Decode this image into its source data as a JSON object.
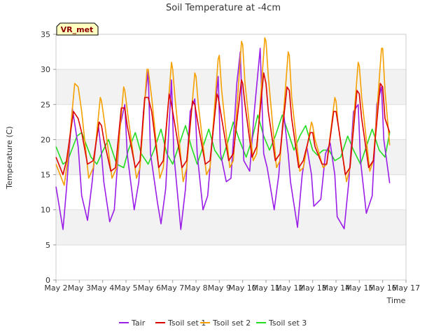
{
  "chart_data": {
    "type": "line",
    "title": "Soil Temperature at -4cm",
    "xlabel": "Time",
    "ylabel": "Temperature (C)",
    "ylim": [
      0,
      35
    ],
    "xlim": [
      2,
      17
    ],
    "yticks": [
      0,
      5,
      10,
      15,
      20,
      25,
      30,
      35
    ],
    "xticks": [
      {
        "v": 2,
        "label": "May 2"
      },
      {
        "v": 3,
        "label": "May 3"
      },
      {
        "v": 4,
        "label": "May 4"
      },
      {
        "v": 5,
        "label": "May 5"
      },
      {
        "v": 6,
        "label": "May 6"
      },
      {
        "v": 7,
        "label": "May 7"
      },
      {
        "v": 8,
        "label": "May 8"
      },
      {
        "v": 9,
        "label": "May 9"
      },
      {
        "v": 10,
        "label": "May 10"
      },
      {
        "v": 11,
        "label": "May 11"
      },
      {
        "v": 12,
        "label": "May 12"
      },
      {
        "v": 13,
        "label": "May 13"
      },
      {
        "v": 14,
        "label": "May 14"
      },
      {
        "v": 15,
        "label": "May 15"
      },
      {
        "v": 16,
        "label": "May 16"
      },
      {
        "v": 17,
        "label": "May 17"
      }
    ],
    "station_badge": "VR_met",
    "legend_position": "bottom-center",
    "series": [
      {
        "name": "Tair",
        "color": "#9b1de8",
        "x": [
          2.0,
          2.3,
          2.45,
          2.7,
          2.95,
          3.1,
          3.35,
          3.55,
          3.8,
          3.95,
          4.05,
          4.3,
          4.5,
          4.75,
          4.95,
          5.05,
          5.35,
          5.55,
          5.75,
          5.95,
          6.05,
          6.35,
          6.5,
          6.7,
          6.95,
          7.05,
          7.35,
          7.55,
          7.75,
          7.95,
          8.05,
          8.3,
          8.5,
          8.75,
          8.95,
          9.05,
          9.3,
          9.5,
          9.75,
          9.9,
          10.05,
          10.3,
          10.5,
          10.75,
          10.9,
          11.05,
          11.35,
          11.55,
          11.75,
          11.95,
          12.05,
          12.35,
          12.55,
          12.75,
          12.95,
          13.05,
          13.35,
          13.55,
          13.75,
          13.95,
          14.05,
          14.35,
          14.55,
          14.75,
          14.95,
          15.05,
          15.3,
          15.55,
          15.75,
          15.95,
          16.05,
          16.3
        ],
        "y": [
          13.3,
          7.2,
          13,
          24.5,
          19,
          12,
          8.5,
          14,
          22.5,
          18,
          14,
          8.3,
          10,
          22,
          25,
          18,
          10,
          14,
          24,
          29.8,
          18,
          11,
          8,
          13,
          28.5,
          18,
          7.2,
          13,
          24,
          25.8,
          18,
          10,
          12,
          22,
          29,
          18,
          14,
          14.5,
          28,
          32.5,
          17,
          15.5,
          24,
          33,
          18,
          16,
          10,
          15,
          24,
          18,
          14,
          7.5,
          15,
          19,
          15,
          10.5,
          11.5,
          18,
          19.5,
          15,
          9,
          7.3,
          14,
          24,
          25,
          17,
          9.5,
          12,
          25,
          27.5,
          20,
          13.8
        ]
      },
      {
        "name": "Tsoil set 1",
        "color": "#dd0000",
        "x": [
          2.0,
          2.3,
          2.45,
          2.75,
          2.95,
          3.1,
          3.35,
          3.6,
          3.85,
          3.95,
          4.05,
          4.35,
          4.55,
          4.8,
          4.95,
          5.05,
          5.4,
          5.6,
          5.8,
          5.95,
          6.1,
          6.4,
          6.6,
          6.85,
          6.95,
          7.1,
          7.4,
          7.6,
          7.85,
          7.95,
          8.1,
          8.4,
          8.6,
          8.9,
          8.95,
          9.1,
          9.4,
          9.6,
          9.95,
          10.0,
          10.1,
          10.4,
          10.6,
          10.9,
          11.0,
          11.1,
          11.4,
          11.6,
          11.9,
          12.0,
          12.1,
          12.4,
          12.6,
          12.9,
          13.0,
          13.1,
          13.4,
          13.6,
          13.9,
          14.0,
          14.1,
          14.4,
          14.6,
          14.9,
          15.0,
          15.1,
          15.4,
          15.6,
          15.9,
          16.0,
          16.1,
          16.3
        ],
        "y": [
          17.5,
          15,
          17,
          24,
          23,
          21,
          16.5,
          17,
          22.5,
          22,
          20,
          15.5,
          16,
          24.5,
          24.5,
          22,
          16,
          17,
          26,
          26,
          24,
          16,
          17,
          26.5,
          25,
          22,
          16,
          17,
          25.5,
          25,
          22,
          16.5,
          17,
          26.5,
          26,
          23,
          17,
          18,
          28.5,
          28,
          25,
          17.5,
          19,
          29.5,
          28,
          24,
          17,
          18,
          27.5,
          27,
          23,
          16,
          17,
          21,
          21,
          19,
          16.5,
          16.5,
          24,
          24,
          22,
          15,
          16,
          27,
          26.5,
          23,
          16,
          17,
          28,
          27.5,
          23,
          21
        ]
      },
      {
        "name": "Tsoil set 2",
        "color": "#f5a000",
        "x": [
          2.0,
          2.35,
          2.5,
          2.8,
          2.95,
          3.1,
          3.4,
          3.6,
          3.9,
          3.95,
          4.1,
          4.4,
          4.6,
          4.9,
          4.95,
          5.1,
          5.45,
          5.6,
          5.9,
          5.95,
          6.1,
          6.45,
          6.6,
          6.95,
          7.0,
          7.1,
          7.45,
          7.6,
          7.95,
          8.0,
          8.1,
          8.45,
          8.6,
          8.95,
          9.0,
          9.1,
          9.45,
          9.6,
          9.95,
          10.0,
          10.1,
          10.45,
          10.6,
          10.95,
          11.0,
          11.1,
          11.45,
          11.6,
          11.95,
          12.0,
          12.1,
          12.45,
          12.6,
          12.95,
          13.0,
          13.1,
          13.45,
          13.6,
          13.95,
          14.0,
          14.1,
          14.45,
          14.6,
          14.95,
          15.0,
          15.1,
          15.45,
          15.6,
          15.95,
          16.0,
          16.1,
          16.3
        ],
        "y": [
          16.5,
          13.5,
          17,
          28,
          27.5,
          24,
          14.5,
          16,
          26,
          25.5,
          22,
          14.5,
          16,
          27.5,
          27,
          23,
          14.5,
          16,
          30,
          30,
          26,
          14.5,
          16,
          31,
          30,
          26,
          14,
          16,
          29.5,
          29,
          25,
          15,
          16,
          31.5,
          32,
          27,
          16,
          17,
          34,
          33.5,
          28,
          17,
          18,
          34.5,
          34,
          29,
          16,
          17,
          32.5,
          32,
          26,
          15.5,
          16,
          22.5,
          22,
          20,
          16,
          16.5,
          26,
          25.5,
          22,
          14,
          16,
          31,
          30.5,
          26,
          15.5,
          17,
          33,
          33,
          27,
          19.2
        ]
      },
      {
        "name": "Tsoil set 3",
        "color": "#22dd22",
        "x": [
          2.0,
          2.3,
          2.5,
          2.9,
          3.1,
          3.5,
          3.75,
          3.95,
          4.25,
          4.6,
          4.9,
          5.1,
          5.4,
          5.65,
          5.95,
          6.2,
          6.5,
          6.75,
          7.0,
          7.25,
          7.55,
          7.8,
          8.05,
          8.3,
          8.55,
          8.8,
          9.1,
          9.35,
          9.6,
          9.85,
          10.15,
          10.4,
          10.65,
          10.9,
          11.15,
          11.4,
          11.7,
          11.95,
          12.2,
          12.45,
          12.7,
          13.0,
          13.2,
          13.45,
          13.7,
          13.95,
          14.2,
          14.5,
          14.75,
          15.05,
          15.3,
          15.55,
          15.85,
          16.1,
          16.3
        ],
        "y": [
          19,
          16.5,
          17,
          20.5,
          21,
          17.5,
          16.5,
          18,
          20,
          16.5,
          16,
          18.5,
          21,
          18,
          16.5,
          18.5,
          21.5,
          18,
          16.5,
          19,
          22,
          19,
          16.5,
          19,
          21.5,
          18.5,
          17,
          19.5,
          22.5,
          20,
          17.5,
          20,
          23.5,
          20.5,
          18.5,
          20.5,
          23.5,
          21,
          18.5,
          20.5,
          22,
          18.5,
          17.8,
          18.5,
          18.5,
          17,
          17.5,
          20.5,
          18.5,
          16.5,
          19,
          21.5,
          18.5,
          17.5,
          21
        ]
      }
    ]
  }
}
